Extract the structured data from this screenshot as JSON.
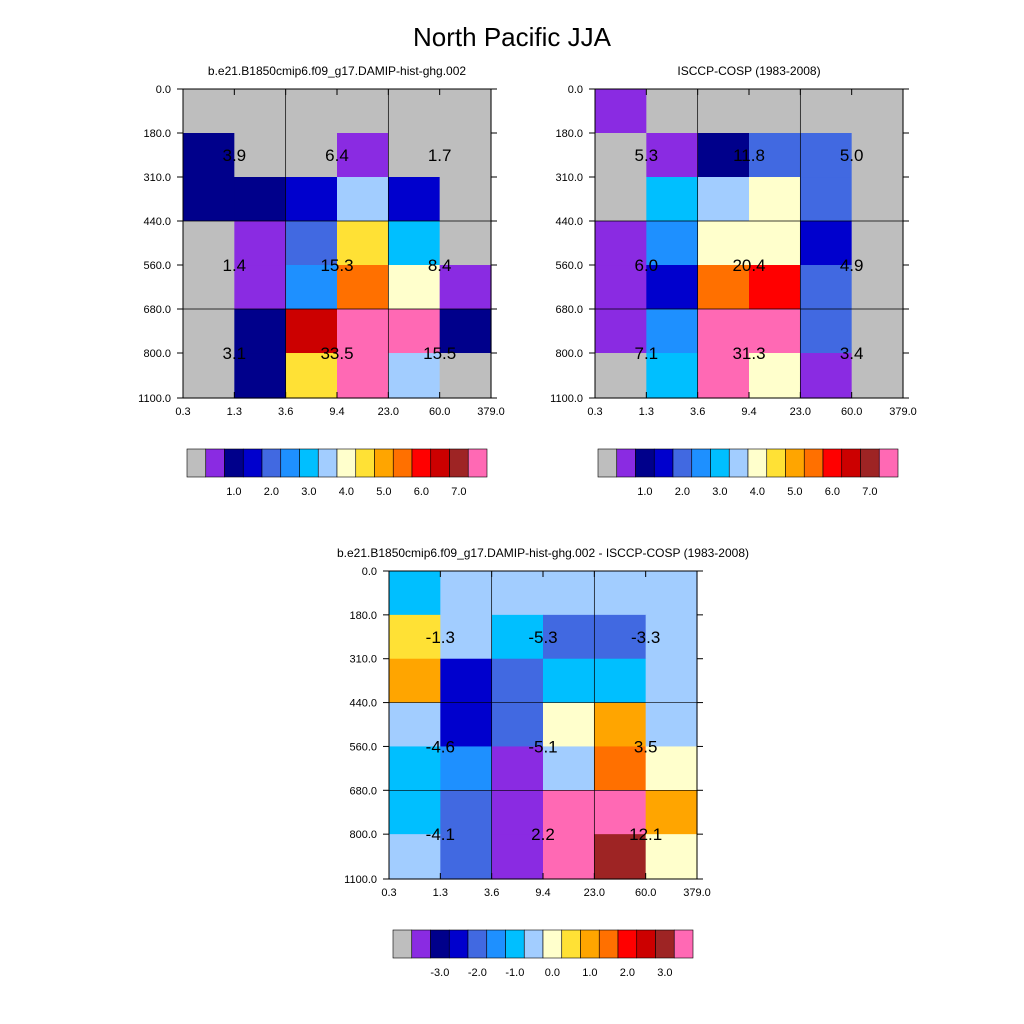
{
  "chart_data": {
    "title": "North Pacific JJA",
    "type": "heatmap",
    "x_tick_labels": [
      "0.3",
      "1.3",
      "3.6",
      "9.4",
      "23.0",
      "60.0",
      "379.0"
    ],
    "y_tick_labels": [
      "0.0",
      "180.0",
      "310.0",
      "440.0",
      "560.0",
      "680.0",
      "800.0",
      "1100.0"
    ],
    "panels": [
      {
        "title": "b.e21.B1850cmip6.f09_g17.DAMIP-hist-ghg.002",
        "cell_colors": [
          [
            "#BEBEBE",
            "#BEBEBE",
            "#BEBEBE",
            "#BEBEBE",
            "#BEBEBE",
            "#BEBEBE"
          ],
          [
            "#00008B",
            "#BEBEBE",
            "#BEBEBE",
            "#8A2BE2",
            "#BEBEBE",
            "#BEBEBE"
          ],
          [
            "#00008B",
            "#00008B",
            "#0000CD",
            "#A2CDFF",
            "#0000CD",
            "#BEBEBE"
          ],
          [
            "#BEBEBE",
            "#8A2BE2",
            "#4169E1",
            "#FFE135",
            "#00BFFF",
            "#BEBEBE"
          ],
          [
            "#BEBEBE",
            "#8A2BE2",
            "#1E90FF",
            "#FF7000",
            "#FFFFCC",
            "#8A2BE2"
          ],
          [
            "#BEBEBE",
            "#00008B",
            "#CC0000",
            "#FF69B4",
            "#FF69B4",
            "#00008B"
          ],
          [
            "#BEBEBE",
            "#00008B",
            "#FFE135",
            "#FF69B4",
            "#A2CDFF",
            "#BEBEBE"
          ]
        ],
        "block_values": [
          [
            "3.9",
            "6.4",
            "1.7"
          ],
          [
            "1.4",
            "15.3",
            "8.4"
          ],
          [
            "3.1",
            "33.5",
            "15.5"
          ]
        ],
        "colorbar": {
          "colors": [
            "#BEBEBE",
            "#8A2BE2",
            "#00008B",
            "#0000CD",
            "#4169E1",
            "#1E90FF",
            "#00BFFF",
            "#A2CDFF",
            "#FFFFCC",
            "#FFE135",
            "#FFA500",
            "#FF7000",
            "#FF0000",
            "#CC0000",
            "#9E2424",
            "#FF69B4"
          ],
          "labels": [
            "1.0",
            "2.0",
            "3.0",
            "4.0",
            "5.0",
            "6.0",
            "7.0"
          ]
        }
      },
      {
        "title": "ISCCP-COSP (1983-2008)",
        "cell_colors": [
          [
            "#8A2BE2",
            "#BEBEBE",
            "#BEBEBE",
            "#BEBEBE",
            "#BEBEBE",
            "#BEBEBE"
          ],
          [
            "#BEBEBE",
            "#8A2BE2",
            "#00008B",
            "#4169E1",
            "#4169E1",
            "#BEBEBE"
          ],
          [
            "#BEBEBE",
            "#00BFFF",
            "#A2CDFF",
            "#FFFFCC",
            "#4169E1",
            "#BEBEBE"
          ],
          [
            "#8A2BE2",
            "#1E90FF",
            "#FFFFCC",
            "#FFFFCC",
            "#0000CD",
            "#BEBEBE"
          ],
          [
            "#8A2BE2",
            "#0000CD",
            "#FF7000",
            "#FF0000",
            "#4169E1",
            "#BEBEBE"
          ],
          [
            "#8A2BE2",
            "#1E90FF",
            "#FF69B4",
            "#FF69B4",
            "#4169E1",
            "#BEBEBE"
          ],
          [
            "#BEBEBE",
            "#00BFFF",
            "#FF69B4",
            "#FFFFCC",
            "#8A2BE2",
            "#BEBEBE"
          ]
        ],
        "block_values": [
          [
            "5.3",
            "11.8",
            "5.0"
          ],
          [
            "6.0",
            "20.4",
            "4.9"
          ],
          [
            "7.1",
            "31.3",
            "3.4"
          ]
        ],
        "colorbar": {
          "colors": [
            "#BEBEBE",
            "#8A2BE2",
            "#00008B",
            "#0000CD",
            "#4169E1",
            "#1E90FF",
            "#00BFFF",
            "#A2CDFF",
            "#FFFFCC",
            "#FFE135",
            "#FFA500",
            "#FF7000",
            "#FF0000",
            "#CC0000",
            "#9E2424",
            "#FF69B4"
          ],
          "labels": [
            "1.0",
            "2.0",
            "3.0",
            "4.0",
            "5.0",
            "6.0",
            "7.0"
          ]
        }
      },
      {
        "title": "b.e21.B1850cmip6.f09_g17.DAMIP-hist-ghg.002 - ISCCP-COSP (1983-2008)",
        "cell_colors": [
          [
            "#00BFFF",
            "#A2CDFF",
            "#A2CDFF",
            "#A2CDFF",
            "#A2CDFF",
            "#A2CDFF"
          ],
          [
            "#FFE135",
            "#A2CDFF",
            "#00BFFF",
            "#4169E1",
            "#4169E1",
            "#A2CDFF"
          ],
          [
            "#FFA500",
            "#0000CD",
            "#4169E1",
            "#00BFFF",
            "#00BFFF",
            "#A2CDFF"
          ],
          [
            "#A2CDFF",
            "#0000CD",
            "#4169E1",
            "#FFFFCC",
            "#FFA500",
            "#A2CDFF"
          ],
          [
            "#00BFFF",
            "#1E90FF",
            "#8A2BE2",
            "#A2CDFF",
            "#FF7000",
            "#FFFFCC"
          ],
          [
            "#00BFFF",
            "#4169E1",
            "#8A2BE2",
            "#FF69B4",
            "#FF69B4",
            "#FFA500"
          ],
          [
            "#A2CDFF",
            "#4169E1",
            "#8A2BE2",
            "#FF69B4",
            "#9E2424",
            "#FFFFCC"
          ]
        ],
        "block_values": [
          [
            "-1.3",
            "-5.3",
            "-3.3"
          ],
          [
            "-4.6",
            "-5.1",
            "3.5"
          ],
          [
            "-4.1",
            "2.2",
            "12.1"
          ]
        ],
        "colorbar": {
          "colors": [
            "#BEBEBE",
            "#8A2BE2",
            "#00008B",
            "#0000CD",
            "#4169E1",
            "#1E90FF",
            "#00BFFF",
            "#A2CDFF",
            "#FFFFCC",
            "#FFE135",
            "#FFA500",
            "#FF7000",
            "#FF0000",
            "#CC0000",
            "#9E2424",
            "#FF69B4"
          ],
          "labels": [
            "-3.0",
            "-2.0",
            "-1.0",
            "0.0",
            "1.0",
            "2.0",
            "3.0"
          ]
        }
      }
    ]
  }
}
